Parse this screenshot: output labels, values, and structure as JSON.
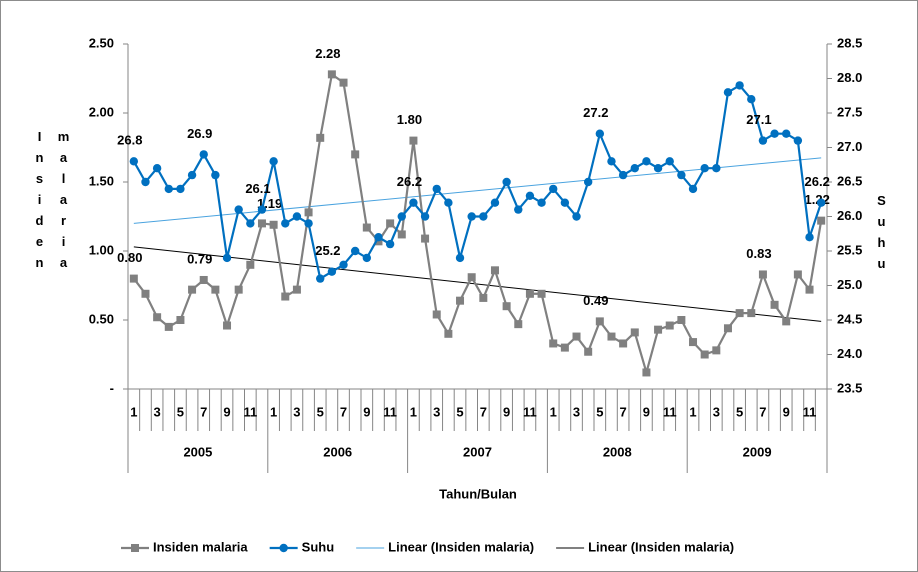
{
  "chart_data": {
    "type": "line",
    "x_label": "Tahun/Bulan",
    "y_label": "Insiden malaria",
    "y2_label": "Suhu",
    "groups": [
      "2005",
      "2006",
      "2007",
      "2008",
      "2009"
    ],
    "categories": [
      "1",
      null,
      "3",
      null,
      "5",
      null,
      "7",
      null,
      "9",
      null,
      "11",
      null,
      "1",
      null,
      "3",
      null,
      "5",
      null,
      "7",
      null,
      "9",
      null,
      "11",
      null,
      "1",
      null,
      "3",
      null,
      "5",
      null,
      "7",
      null,
      "9",
      null,
      "11",
      null,
      "1",
      null,
      "3",
      null,
      "5",
      null,
      "7",
      null,
      "9",
      null,
      "11",
      null,
      "1",
      null,
      "3",
      null,
      "5",
      null,
      "7",
      null,
      "9",
      null,
      "11",
      null
    ],
    "ylim": [
      0,
      2.5
    ],
    "yticks": [
      {
        "value": 0,
        "label": "-"
      },
      {
        "value": 0.5,
        "label": "0.50"
      },
      {
        "value": 1,
        "label": "1.00"
      },
      {
        "value": 1.5,
        "label": "1.50"
      },
      {
        "value": 2,
        "label": "2.00"
      },
      {
        "value": 2.5,
        "label": "2.50"
      }
    ],
    "y2lim": [
      23.5,
      28.5
    ],
    "y2ticks": [
      23.5,
      {
        "value": 24,
        "label": "24.0"
      },
      24.5,
      {
        "value": 25,
        "label": "25.0"
      },
      25.5,
      {
        "value": 26,
        "label": "26.0"
      },
      26.5,
      {
        "value": 27,
        "label": "27.0"
      },
      27.5,
      {
        "value": 28,
        "label": "28.0"
      },
      28.5
    ],
    "series": [
      {
        "name": "Insiden malaria",
        "color": "#808080",
        "marker": "square",
        "values": [
          0.8,
          0.69,
          0.52,
          0.45,
          0.5,
          0.72,
          0.79,
          0.72,
          0.46,
          0.72,
          0.9,
          1.2,
          1.19,
          0.67,
          0.72,
          1.28,
          1.82,
          2.28,
          2.22,
          1.7,
          1.17,
          1.07,
          1.2,
          1.12,
          1.8,
          1.09,
          0.54,
          0.4,
          0.64,
          0.81,
          0.66,
          0.86,
          0.6,
          0.47,
          0.69,
          0.69,
          0.33,
          0.3,
          0.38,
          0.27,
          0.49,
          0.38,
          0.33,
          0.41,
          0.12,
          0.43,
          0.46,
          0.5,
          0.34,
          0.25,
          0.28,
          0.44,
          0.55,
          0.55,
          0.83,
          0.61,
          0.49,
          0.83,
          0.72,
          1.22
        ],
        "value_labels": [
          "0.80",
          null,
          null,
          null,
          null,
          null,
          "0.79",
          null,
          null,
          null,
          null,
          null,
          "1.19",
          null,
          null,
          null,
          null,
          "2.28",
          null,
          null,
          null,
          null,
          null,
          null,
          "1.80",
          null,
          null,
          null,
          null,
          null,
          null,
          null,
          null,
          null,
          null,
          null,
          null,
          null,
          null,
          null,
          "0.49",
          null,
          null,
          null,
          null,
          null,
          null,
          null,
          null,
          null,
          null,
          null,
          null,
          null,
          "0.83",
          null,
          null,
          null,
          null,
          "1.22"
        ]
      },
      {
        "name": "Suhu",
        "color": "#0070c0",
        "marker": "circle",
        "axis": "y2",
        "values": [
          26.8,
          26.5,
          26.7,
          26.4,
          26.4,
          26.6,
          26.9,
          26.6,
          25.4,
          26.1,
          25.9,
          26.1,
          26.8,
          25.9,
          26.0,
          25.9,
          25.1,
          25.2,
          25.3,
          25.5,
          25.4,
          25.7,
          25.6,
          26.0,
          26.2,
          26.0,
          26.4,
          26.2,
          25.4,
          26.0,
          26.0,
          26.2,
          26.5,
          26.1,
          26.3,
          26.2,
          26.4,
          26.2,
          26.0,
          26.5,
          27.2,
          26.8,
          26.6,
          26.7,
          26.8,
          26.7,
          26.8,
          26.6,
          26.4,
          26.7,
          26.7,
          27.8,
          27.9,
          27.7,
          27.1,
          27.2,
          27.2,
          27.1,
          25.7,
          26.2
        ],
        "value_labels": [
          "26.8",
          null,
          null,
          null,
          null,
          null,
          "26.9",
          null,
          null,
          null,
          null,
          "26.1",
          null,
          null,
          null,
          null,
          null,
          "25.2",
          null,
          null,
          null,
          null,
          null,
          null,
          "26.2",
          null,
          null,
          null,
          null,
          null,
          null,
          null,
          null,
          null,
          null,
          null,
          null,
          null,
          null,
          null,
          "27.2",
          null,
          null,
          null,
          null,
          null,
          null,
          null,
          null,
          null,
          null,
          null,
          null,
          null,
          "27.1",
          null,
          null,
          null,
          null,
          "26.2"
        ]
      }
    ],
    "trendlines": [
      {
        "name": "Linear (Insiden malaria)",
        "color": "#4aa3df",
        "axis": "y2",
        "start": 25.9,
        "end": 26.85
      },
      {
        "name": "Linear (Insiden malaria)",
        "color": "#000000",
        "start": 1.03,
        "end": 0.49
      }
    ]
  }
}
